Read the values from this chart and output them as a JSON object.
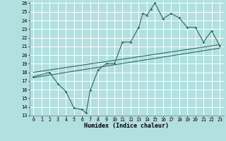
{
  "xlabel": "Humidex (Indice chaleur)",
  "bg_color": "#b2e0e0",
  "grid_color": "#ffffff",
  "line_color": "#2d6b5e",
  "xlim": [
    -0.5,
    23.5
  ],
  "ylim": [
    13,
    26.2
  ],
  "xticks": [
    0,
    1,
    2,
    3,
    4,
    5,
    6,
    7,
    8,
    9,
    10,
    11,
    12,
    13,
    14,
    15,
    16,
    17,
    18,
    19,
    20,
    21,
    22,
    23
  ],
  "yticks": [
    13,
    14,
    15,
    16,
    17,
    18,
    19,
    20,
    21,
    22,
    23,
    24,
    25,
    26
  ],
  "curve_points": [
    [
      0,
      17.5
    ],
    [
      2,
      18.0
    ],
    [
      3,
      16.7
    ],
    [
      4,
      15.8
    ],
    [
      5,
      13.9
    ],
    [
      6,
      13.7
    ],
    [
      6.5,
      13.3
    ],
    [
      7,
      15.9
    ],
    [
      8,
      18.3
    ],
    [
      9,
      19.0
    ],
    [
      10,
      19.0
    ],
    [
      11,
      21.5
    ],
    [
      12,
      21.5
    ],
    [
      13,
      23.2
    ],
    [
      13.5,
      24.8
    ],
    [
      14,
      24.6
    ],
    [
      14.5,
      25.3
    ],
    [
      15,
      26.0
    ],
    [
      16,
      24.2
    ],
    [
      17,
      24.8
    ],
    [
      18,
      24.3
    ],
    [
      19,
      23.2
    ],
    [
      20,
      23.2
    ],
    [
      21,
      21.5
    ],
    [
      22,
      22.8
    ],
    [
      23,
      21.1
    ]
  ],
  "line1_points": [
    [
      0,
      18.0
    ],
    [
      23,
      21.2
    ]
  ],
  "line2_points": [
    [
      0,
      17.4
    ],
    [
      23,
      20.8
    ]
  ]
}
